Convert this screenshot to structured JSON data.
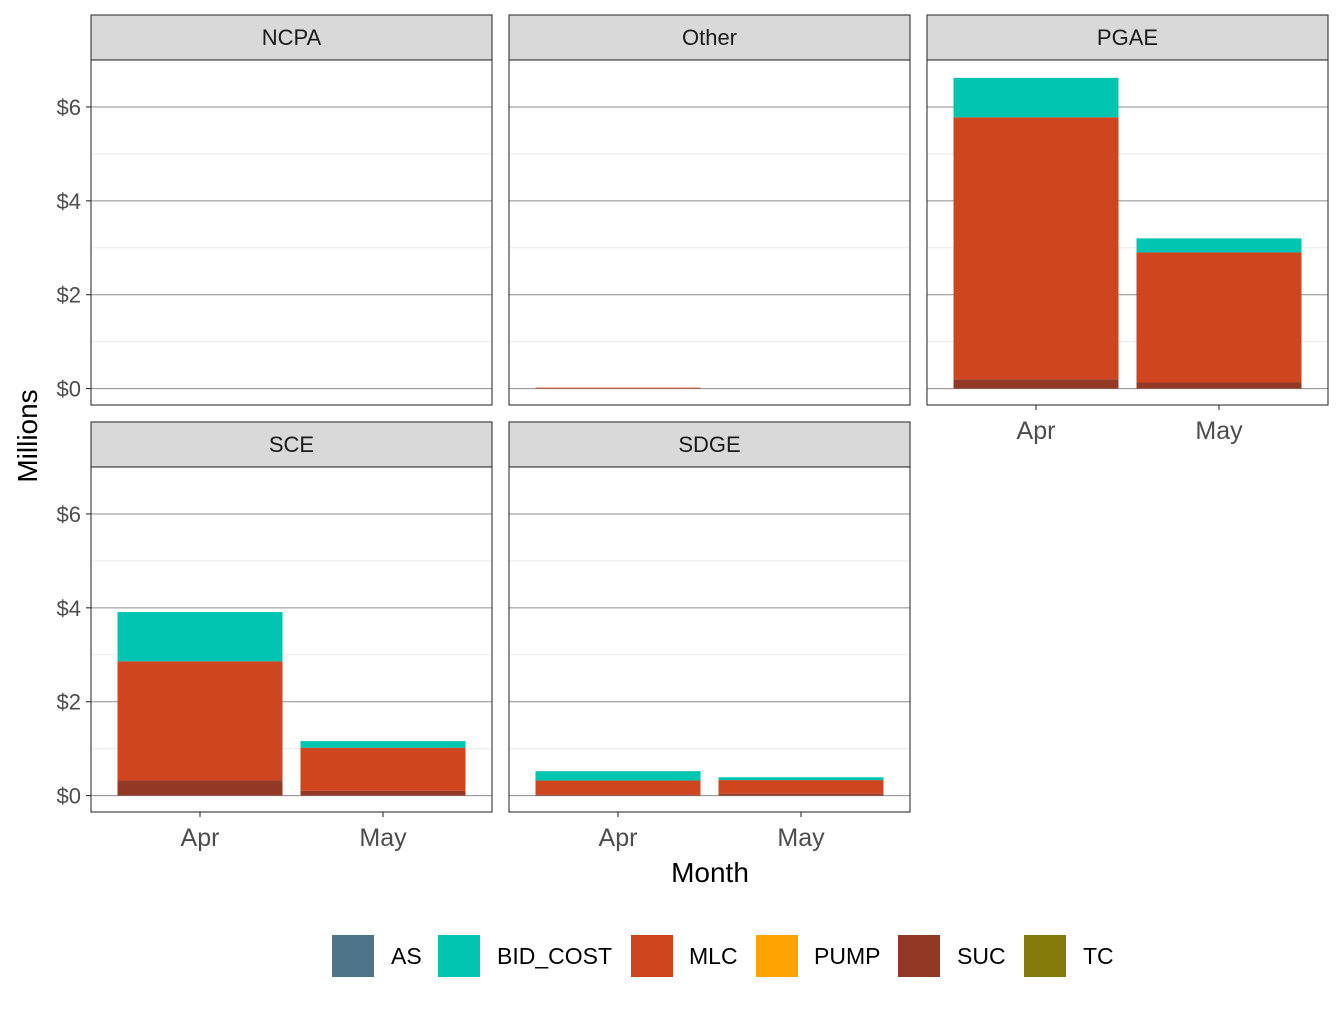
{
  "chart_data": {
    "type": "bar",
    "stacked": true,
    "facet_order": [
      "NCPA",
      "Other",
      "PGAE",
      "SCE",
      "SDGE"
    ],
    "xlabel": "Month",
    "ylabel": "Millions",
    "ylim": [
      -0.35,
      7.0
    ],
    "y_ticks": [
      0,
      2,
      4,
      6
    ],
    "y_tick_labels": [
      "$0",
      "$2",
      "$4",
      "$6"
    ],
    "categories": [
      "Apr",
      "May"
    ],
    "legend_position": "bottom",
    "legend": [
      {
        "name": "AS",
        "color": "#4E7489"
      },
      {
        "name": "BID_COST",
        "color": "#00C5B0"
      },
      {
        "name": "MLC",
        "color": "#CE4520"
      },
      {
        "name": "PUMP",
        "color": "#FFA300"
      },
      {
        "name": "SUC",
        "color": "#943826"
      },
      {
        "name": "TC",
        "color": "#857B0A"
      }
    ],
    "stack_order": [
      "SUC",
      "MLC",
      "BID_COST"
    ],
    "facets": [
      {
        "name": "NCPA",
        "values": {
          "Apr": {
            "SUC": 0,
            "MLC": 0,
            "BID_COST": 0
          },
          "May": {
            "SUC": 0,
            "MLC": 0,
            "BID_COST": 0
          }
        }
      },
      {
        "name": "Other",
        "values": {
          "Apr": {
            "SUC": 0,
            "MLC": 0.02,
            "BID_COST": 0
          },
          "May": {
            "SUC": 0,
            "MLC": 0,
            "BID_COST": 0
          }
        }
      },
      {
        "name": "PGAE",
        "values": {
          "Apr": {
            "SUC": 0.2,
            "MLC": 5.58,
            "BID_COST": 0.84
          },
          "May": {
            "SUC": 0.13,
            "MLC": 2.77,
            "BID_COST": 0.3
          }
        }
      },
      {
        "name": "SCE",
        "values": {
          "Apr": {
            "SUC": 0.32,
            "MLC": 2.54,
            "BID_COST": 1.05
          },
          "May": {
            "SUC": 0.1,
            "MLC": 0.92,
            "BID_COST": 0.14
          }
        }
      },
      {
        "name": "SDGE",
        "values": {
          "Apr": {
            "SUC": 0.02,
            "MLC": 0.3,
            "BID_COST": 0.2
          },
          "May": {
            "SUC": 0.04,
            "MLC": 0.29,
            "BID_COST": 0.06
          }
        }
      }
    ]
  }
}
